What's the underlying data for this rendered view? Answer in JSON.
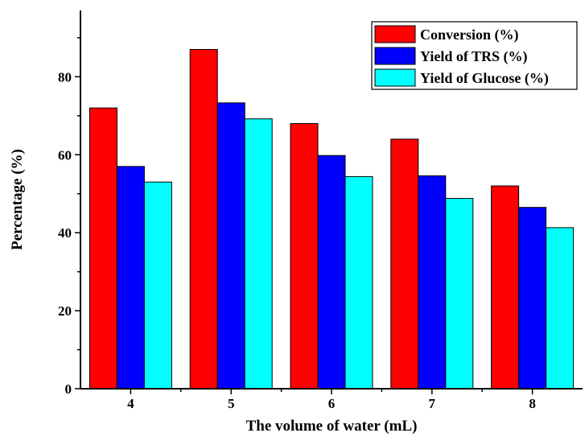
{
  "chart_data": {
    "type": "bar",
    "xlabel": "The volume of water (mL)",
    "ylabel": "Percentage (%)",
    "categories": [
      "4",
      "5",
      "6",
      "7",
      "8"
    ],
    "ylim": [
      0,
      97
    ],
    "yticks": [
      0,
      20,
      40,
      60,
      80
    ],
    "legend_position": "top-right",
    "grid": false,
    "series": [
      {
        "name": "Conversion (%)",
        "color": "#ff0000",
        "values": [
          72,
          87,
          68,
          64,
          52
        ]
      },
      {
        "name": "Yield of TRS (%)",
        "color": "#0000ff",
        "values": [
          57,
          73.3,
          59.8,
          54.6,
          46.5
        ]
      },
      {
        "name": "Yield of Glucose (%)",
        "color": "#00ffff",
        "values": [
          53,
          69.2,
          54.4,
          48.8,
          41.3
        ]
      }
    ]
  }
}
